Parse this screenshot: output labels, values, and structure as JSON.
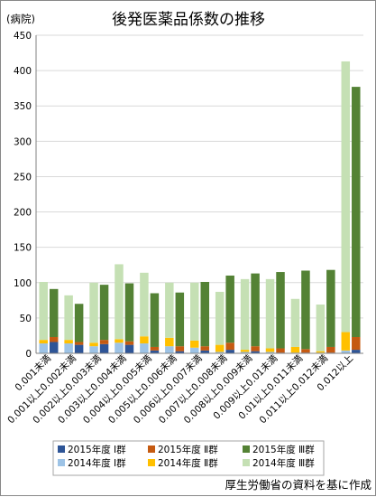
{
  "chart_data": {
    "type": "bar",
    "title": "後発医薬品係数の推移",
    "ylabel": "(病院)",
    "xlabel": "",
    "ylim": [
      0,
      450
    ],
    "yticks": [
      0,
      50,
      100,
      150,
      200,
      250,
      300,
      350,
      400,
      450
    ],
    "grid": true,
    "legend_position": "bottom",
    "categories": [
      "0.001未満",
      "0.001以上0.002未満",
      "0.002以上0.003未満",
      "0.003以上0.004未満",
      "0.004以上0.005未満",
      "0.005以上0.006未満",
      "0.006以上0.007未満",
      "0.007以上0.008未満",
      "0.008以上0.009未満",
      "0.009以上0.01未満",
      "0.01以上0.011未満",
      "0.011以上0.012未満",
      "0.012以上"
    ],
    "series_groups": [
      {
        "year_label": "2014年度",
        "series": [
          {
            "name": "2014年度 Ⅰ群",
            "color": "#9dc3e6",
            "values": [
              14,
              14,
              10,
              15,
              14,
              10,
              8,
              2,
              2,
              2,
              1,
              1,
              4
            ]
          },
          {
            "name": "2014年度 Ⅱ群",
            "color": "#ffc000",
            "values": [
              5,
              5,
              5,
              5,
              10,
              12,
              10,
              10,
              3,
              5,
              8,
              2,
              26
            ]
          },
          {
            "name": "2014年度 Ⅲ群",
            "color": "#c5e0b4",
            "values": [
              82,
              63,
              85,
              106,
              90,
              78,
              82,
              75,
              100,
              98,
              68,
              66,
              383
            ]
          }
        ]
      },
      {
        "year_label": "2015年度",
        "series": [
          {
            "name": "2015年度 Ⅰ群",
            "color": "#2e5597",
            "values": [
              16,
              12,
              13,
              12,
              4,
              3,
              4,
              5,
              3,
              1,
              1,
              1,
              5
            ]
          },
          {
            "name": "2015年度 Ⅱ群",
            "color": "#c55a11",
            "values": [
              7,
              4,
              6,
              5,
              5,
              7,
              6,
              10,
              7,
              6,
              5,
              8,
              18
            ]
          },
          {
            "name": "2015年度 Ⅲ群",
            "color": "#548235",
            "values": [
              68,
              54,
              78,
              82,
              76,
              76,
              91,
              95,
              103,
              108,
              111,
              109,
              354
            ]
          }
        ]
      }
    ],
    "legend": [
      [
        "2015年度 Ⅰ群",
        "#2e5597"
      ],
      [
        "2015年度 Ⅱ群",
        "#c55a11"
      ],
      [
        "2015年度 Ⅲ群",
        "#548235"
      ],
      [
        "2014年度 Ⅰ群",
        "#9dc3e6"
      ],
      [
        "2014年度 Ⅱ群",
        "#ffc000"
      ],
      [
        "2014年度 Ⅲ群",
        "#c5e0b4"
      ]
    ]
  },
  "source_note": "厚生労働省の資料を基に作成"
}
